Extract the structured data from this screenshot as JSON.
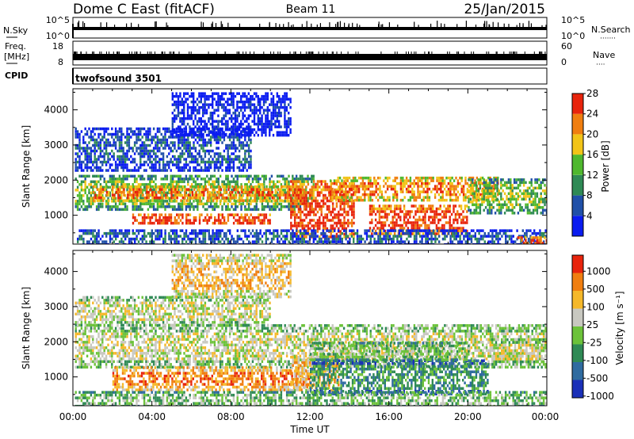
{
  "header": {
    "title": "Dome C East (fitACF)",
    "beam": "Beam 11",
    "date": "25/Jan/2015"
  },
  "nsky_panel": {
    "label": "N.Sky",
    "left_ticks": [
      "10^5",
      "10^0"
    ],
    "right_ticks": [
      "10^5",
      "10^0"
    ],
    "right_label": "N.Search",
    "right_label_dots": "·······"
  },
  "freq_panel": {
    "label_line1": "Freq.",
    "label_line2": "[MHz]",
    "left_ticks": [
      "18",
      "8"
    ],
    "right_ticks": [
      "60",
      "0"
    ],
    "right_label": "Nave",
    "right_label_dots": "····"
  },
  "cpid": {
    "label": "CPID",
    "text": "twofsound 3501"
  },
  "x_axis": {
    "label": "Time UT",
    "ticks": [
      "00:00",
      "04:00",
      "08:00",
      "12:00",
      "16:00",
      "20:00",
      "00:00"
    ],
    "range_hours": [
      0,
      24
    ]
  },
  "chart_data": [
    {
      "type": "heatmap",
      "name": "power",
      "ylabel": "Slant Range [km]",
      "ylim": [
        180,
        4600
      ],
      "yticks": [
        "1000",
        "2000",
        "3000",
        "4000"
      ],
      "colorbar": {
        "label": "Power [dB]",
        "ticks": [
          "4",
          "8",
          "12",
          "16",
          "20",
          "24",
          "28"
        ],
        "colors": [
          "#0a1cf0",
          "#2050a8",
          "#2f8a55",
          "#4fb82e",
          "#f2c418",
          "#f07e10",
          "#e8240c"
        ]
      },
      "bands": [
        {
          "t0": 0.1,
          "t1": 12.2,
          "r0": 1150,
          "r1": 2150,
          "level": 3
        },
        {
          "t0": 1.0,
          "t1": 11.5,
          "r0": 1450,
          "r1": 1850,
          "level": 5
        },
        {
          "t0": 3.0,
          "t1": 10.0,
          "r0": 750,
          "r1": 1050,
          "level": 6
        },
        {
          "t0": 11.0,
          "t1": 14.2,
          "r0": 400,
          "r1": 2000,
          "level": 6
        },
        {
          "t0": 13.0,
          "t1": 21.5,
          "r0": 1450,
          "r1": 2100,
          "level": 5
        },
        {
          "t0": 15.0,
          "t1": 20.0,
          "r0": 500,
          "r1": 1300,
          "level": 6
        },
        {
          "t0": 20.0,
          "t1": 24.0,
          "r0": 1100,
          "r1": 2050,
          "level": 3
        },
        {
          "t0": 0.1,
          "t1": 9.0,
          "r0": 2300,
          "r1": 3500,
          "level": 1
        },
        {
          "t0": 5.0,
          "t1": 11.0,
          "r0": 3300,
          "r1": 4500,
          "level": 0
        },
        {
          "t0": 0.2,
          "t1": 24.0,
          "r0": 200,
          "r1": 600,
          "level": 1
        },
        {
          "t0": 22.5,
          "t1": 24.0,
          "r0": 180,
          "r1": 400,
          "level": 6
        }
      ]
    },
    {
      "type": "heatmap",
      "name": "velocity",
      "ylabel": "Slant Range [km]",
      "ylim": [
        180,
        4600
      ],
      "yticks": [
        "1000",
        "2000",
        "3000",
        "4000"
      ],
      "colorbar": {
        "label": "Velocity [m s⁻¹]",
        "ticks": [
          "1000",
          "500",
          "100",
          "25",
          "-25",
          "-100",
          "-500",
          "-1000"
        ],
        "colors": [
          "#1a30b8",
          "#2f6ba0",
          "#2f8a55",
          "#6cc23a",
          "#c8c8c0",
          "#f5b82a",
          "#f07e10",
          "#e8240c"
        ]
      },
      "bands": [
        {
          "t0": 0.1,
          "t1": 24.0,
          "r0": 1300,
          "r1": 2500,
          "level": 4
        },
        {
          "t0": 2.0,
          "t1": 12.0,
          "r0": 650,
          "r1": 1300,
          "level": 6
        },
        {
          "t0": 11.0,
          "t1": 13.5,
          "r0": 600,
          "r1": 1600,
          "level": 5
        },
        {
          "t0": 12.0,
          "t1": 21.0,
          "r0": 500,
          "r1": 1500,
          "level": 2
        },
        {
          "t0": 12.0,
          "t1": 20.0,
          "r0": 1500,
          "r1": 2000,
          "level": 3
        },
        {
          "t0": 0.1,
          "t1": 24.0,
          "r0": 200,
          "r1": 600,
          "level": 3
        },
        {
          "t0": 0.1,
          "t1": 10.0,
          "r0": 2500,
          "r1": 3300,
          "level": 4
        },
        {
          "t0": 5.0,
          "t1": 11.0,
          "r0": 3300,
          "r1": 4500,
          "level": 5
        },
        {
          "t0": 21.0,
          "t1": 24.0,
          "r0": 1400,
          "r1": 2100,
          "level": 4
        }
      ]
    }
  ]
}
